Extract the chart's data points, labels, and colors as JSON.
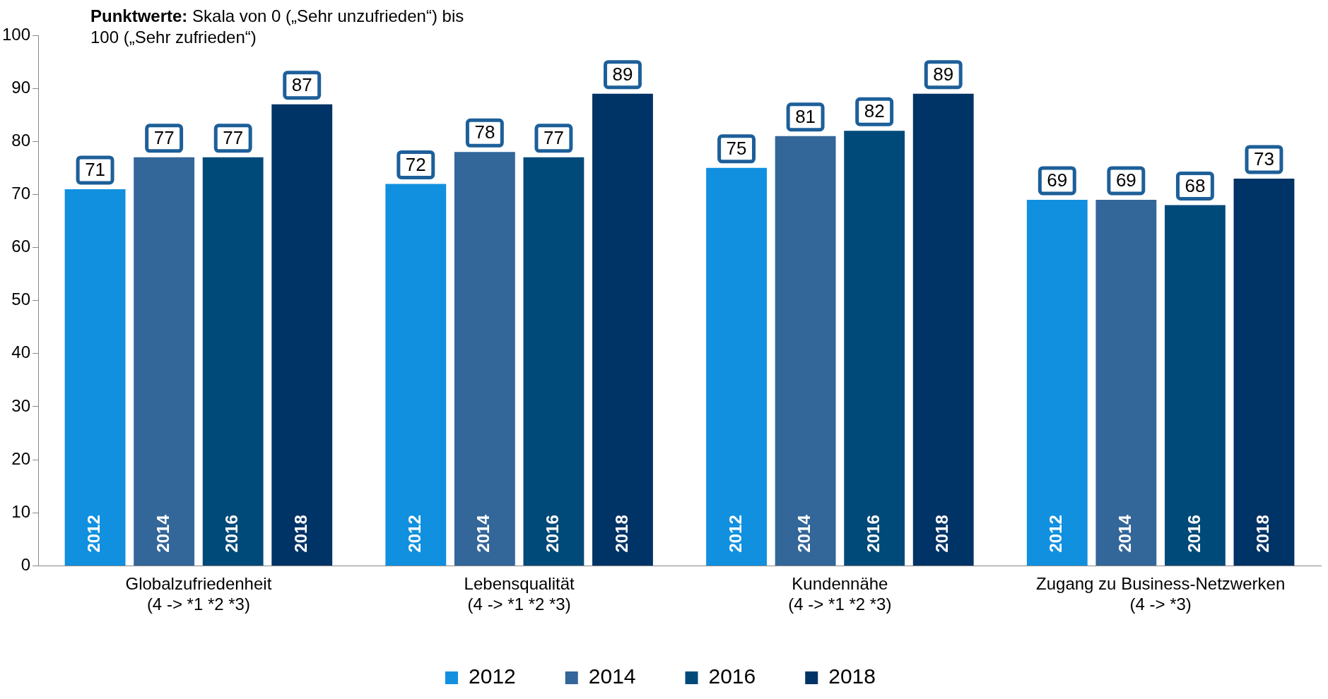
{
  "chart_data": {
    "type": "bar",
    "title": "Punktwerte:",
    "subtitle": "Skala von 0 („Sehr unzufrieden“) bis 100 („Sehr zufrieden“)",
    "categories": [
      "Globalzufriedenheit\n(4 -> *1 *2 *3)",
      "Lebensqualität\n(4 -> *1 *2 *3)",
      "Kundennähe\n(4 -> *1 *2 *3)",
      "Zugang zu Business-Netzwerken\n(4 -> *3)"
    ],
    "series": [
      {
        "name": "2012",
        "color": "#1190e0",
        "values": [
          71,
          72,
          75,
          69
        ]
      },
      {
        "name": "2014",
        "color": "#336699",
        "values": [
          77,
          78,
          81,
          69
        ]
      },
      {
        "name": "2016",
        "color": "#004a7a",
        "values": [
          77,
          77,
          82,
          68
        ]
      },
      {
        "name": "2018",
        "color": "#003366",
        "values": [
          87,
          89,
          89,
          73
        ]
      }
    ],
    "ylim": [
      0,
      100
    ],
    "yticks": [
      0,
      10,
      20,
      30,
      40,
      50,
      60,
      70,
      80,
      90,
      100
    ],
    "grid": false,
    "legend": "bottom",
    "data_labels": true
  }
}
